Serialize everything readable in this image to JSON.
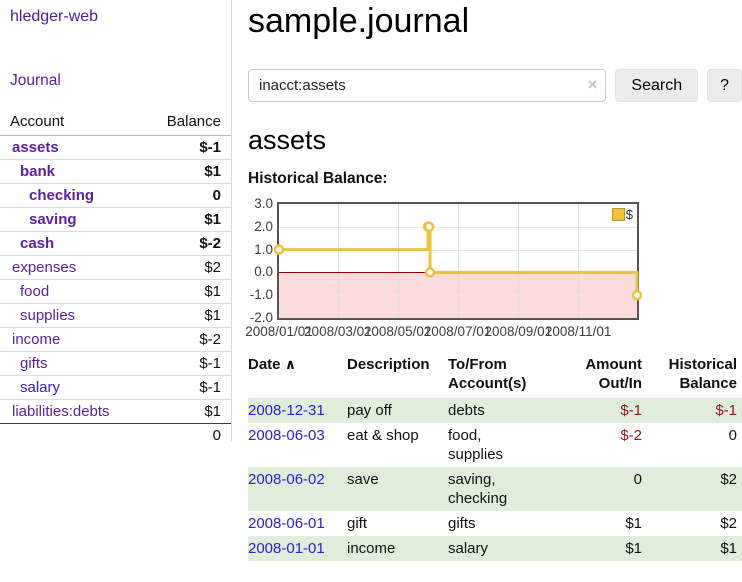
{
  "app": {
    "title": "hledger-web",
    "nav_journal_label": "Journal"
  },
  "icons": {
    "clear": "×",
    "sort_up": "∧"
  },
  "sidebar": {
    "header": {
      "account": "Account",
      "balance": "Balance"
    },
    "accounts": [
      {
        "name": "assets",
        "depth": 1,
        "balance": "$-1",
        "bold": true,
        "neg": "strong"
      },
      {
        "name": "bank",
        "depth": 2,
        "balance": "$1",
        "bold": true,
        "neg": "none"
      },
      {
        "name": "checking",
        "depth": 3,
        "balance": "0",
        "bold": true,
        "neg": "none"
      },
      {
        "name": "saving",
        "depth": 3,
        "balance": "$1",
        "bold": true,
        "neg": "none"
      },
      {
        "name": "cash",
        "depth": 2,
        "balance": "$-2",
        "bold": true,
        "neg": "strong"
      },
      {
        "name": "expenses",
        "depth": 1,
        "balance": "$2",
        "bold": false,
        "neg": "none"
      },
      {
        "name": "food",
        "depth": 2,
        "balance": "$1",
        "bold": false,
        "neg": "none"
      },
      {
        "name": "supplies",
        "depth": 2,
        "balance": "$1",
        "bold": false,
        "neg": "none"
      },
      {
        "name": "income",
        "depth": 1,
        "balance": "$-2",
        "bold": false,
        "neg": "soft"
      },
      {
        "name": "gifts",
        "depth": 2,
        "balance": "$-1",
        "bold": false,
        "neg": "soft"
      },
      {
        "name": "salary",
        "depth": 2,
        "balance": "$-1",
        "bold": false,
        "neg": "soft",
        "link_style": "alt"
      },
      {
        "name": "liabilities:debts",
        "depth": 1,
        "balance": "$1",
        "bold": false,
        "neg": "none"
      }
    ],
    "total": "0"
  },
  "header": {
    "title": "sample.journal"
  },
  "search": {
    "value": "inacct:assets",
    "button_label": "Search",
    "help_label": "?"
  },
  "account_page": {
    "heading": "assets",
    "chart_title": "Historical Balance:"
  },
  "chart_data": {
    "type": "line",
    "title": "Historical Balance",
    "step": true,
    "x": [
      "2008-01-01",
      "2008-06-01",
      "2008-06-02",
      "2008-06-03",
      "2008-12-31"
    ],
    "series": [
      {
        "name": "$",
        "values": [
          1,
          2,
          2,
          0,
          -1
        ],
        "color": "#edc240"
      }
    ],
    "xlim": [
      "2008-01-01",
      "2008-12-31"
    ],
    "ylim": [
      -2,
      3
    ],
    "yticks": [
      3.0,
      2.0,
      1.0,
      0.0,
      -1.0,
      -2.0
    ],
    "xtick_dates": [
      "2008-01-01",
      "2008-03-01",
      "2008-05-01",
      "2008-07-01",
      "2008-09-01",
      "2008-11-01"
    ],
    "xtick_labels": [
      "2008/01/01",
      "2008/03/01",
      "2008/05/01",
      "2008/07/01",
      "2008/09/01",
      "2008/11/01"
    ],
    "legend": {
      "label": "$",
      "position": "top-right"
    },
    "grid": true,
    "negative_region_color": "#fbdbdb",
    "zero_line_color": "#900000"
  },
  "register": {
    "columns": {
      "date": "Date",
      "description": "Description",
      "accounts": "To/From Account(s)",
      "amount": "Amount Out/In",
      "balance": "Historical Balance"
    },
    "rows": [
      {
        "date": "2008-12-31",
        "description": "pay off",
        "accounts": "debts",
        "amount": "$-1",
        "amount_neg": true,
        "balance": "$-1",
        "balance_neg": true
      },
      {
        "date": "2008-06-03",
        "description": "eat & shop",
        "accounts": "food, supplies",
        "amount": "$-2",
        "amount_neg": true,
        "balance": "0",
        "balance_neg": false
      },
      {
        "date": "2008-06-02",
        "description": "save",
        "accounts": "saving, checking",
        "amount": "0",
        "amount_neg": false,
        "balance": "$2",
        "balance_neg": false
      },
      {
        "date": "2008-06-01",
        "description": "gift",
        "accounts": "gifts",
        "amount": "$1",
        "amount_neg": false,
        "balance": "$2",
        "balance_neg": false
      },
      {
        "date": "2008-01-01",
        "description": "income",
        "accounts": "salary",
        "amount": "$1",
        "amount_neg": false,
        "balance": "$1",
        "balance_neg": false
      }
    ]
  }
}
